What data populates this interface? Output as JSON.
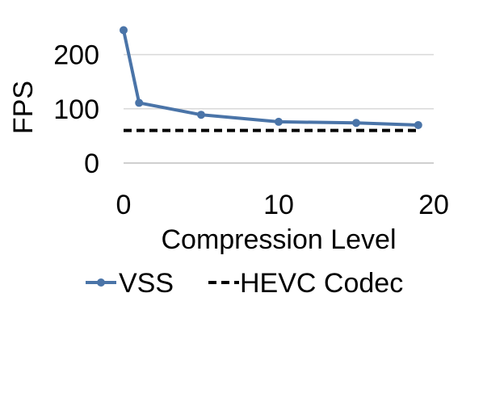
{
  "chart_data": {
    "type": "line",
    "xlabel": "Compression Level",
    "ylabel": "FPS",
    "xlim": [
      0,
      20
    ],
    "ylim": [
      0,
      250
    ],
    "x_ticks": [
      0,
      10,
      20
    ],
    "y_ticks": [
      0,
      100,
      200
    ],
    "grid": "horizontal",
    "legend_position": "bottom",
    "series": [
      {
        "name": "VSS",
        "style": "solid-marker",
        "color": "#4A74A8",
        "x": [
          0,
          1,
          5,
          10,
          15,
          19
        ],
        "y": [
          245,
          111,
          89,
          76,
          74,
          70
        ]
      },
      {
        "name": "HEVC Codec",
        "style": "dashed",
        "color": "#000000",
        "x": [
          0,
          19
        ],
        "y": [
          60,
          60
        ]
      }
    ]
  }
}
